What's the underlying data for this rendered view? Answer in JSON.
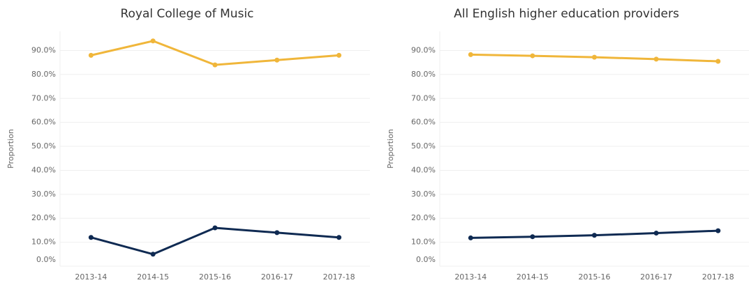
{
  "chart_data": [
    {
      "type": "line",
      "title": "Royal College of Music",
      "y_label": "Proportion",
      "categories": [
        "2013-14",
        "2014-15",
        "2015-16",
        "2016-17",
        "2017-18"
      ],
      "series": [
        {
          "color": "#f0b63a",
          "values": [
            88,
            94,
            84,
            86,
            88
          ]
        },
        {
          "color": "#0f2a52",
          "values": [
            12,
            5,
            16,
            14,
            12
          ]
        }
      ],
      "ylim": [
        0,
        98
      ],
      "yticks": [
        {
          "value": 0,
          "label": "0.0%"
        },
        {
          "value": 10,
          "label": "10.0%"
        },
        {
          "value": 20,
          "label": "20.0%"
        },
        {
          "value": 30,
          "label": "30.0%"
        },
        {
          "value": 40,
          "label": "40.0%"
        },
        {
          "value": 50,
          "label": "50.0%"
        },
        {
          "value": 60,
          "label": "60.0%"
        },
        {
          "value": 70,
          "label": "70.0%"
        },
        {
          "value": 80,
          "label": "80.0%"
        },
        {
          "value": 90,
          "label": "90.0%"
        }
      ],
      "grid": true
    },
    {
      "type": "line",
      "title": "All English higher education providers",
      "y_label": "Proportion",
      "categories": [
        "2013-14",
        "2014-15",
        "2015-16",
        "2016-17",
        "2017-18"
      ],
      "series": [
        {
          "color": "#f0b63a",
          "values": [
            88.3,
            87.8,
            87.2,
            86.4,
            85.5
          ]
        },
        {
          "color": "#0f2a52",
          "values": [
            11.8,
            12.3,
            12.9,
            13.8,
            14.8
          ]
        }
      ],
      "ylim": [
        0,
        98
      ],
      "yticks": [
        {
          "value": 0,
          "label": "0.0%"
        },
        {
          "value": 10,
          "label": "10.0%"
        },
        {
          "value": 20,
          "label": "20.0%"
        },
        {
          "value": 30,
          "label": "30.0%"
        },
        {
          "value": 40,
          "label": "40.0%"
        },
        {
          "value": 50,
          "label": "50.0%"
        },
        {
          "value": 60,
          "label": "60.0%"
        },
        {
          "value": 70,
          "label": "70.0%"
        },
        {
          "value": 80,
          "label": "80.0%"
        },
        {
          "value": 90,
          "label": "90.0%"
        }
      ],
      "grid": true
    }
  ]
}
